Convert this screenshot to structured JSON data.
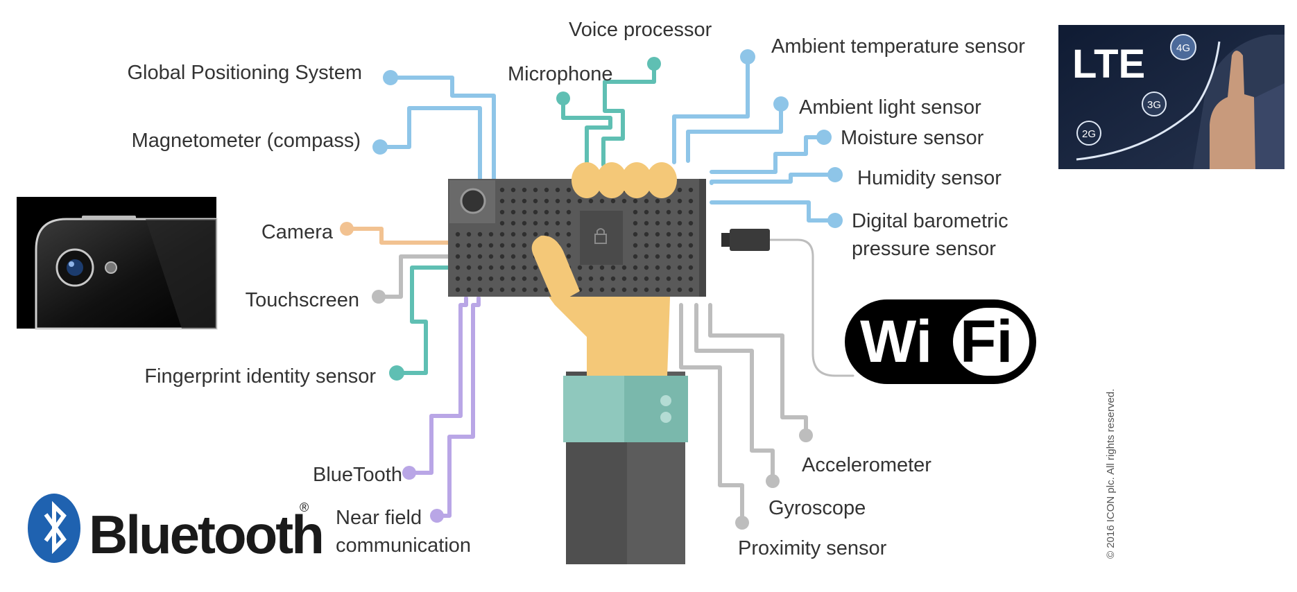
{
  "colors": {
    "blue": "#8ec5e8",
    "teal": "#5fbfb3",
    "orange": "#f2c291",
    "gray": "#bdbdbd",
    "purple": "#b9a6e6",
    "bluetooth_blue": "#1f62b0",
    "phone_body": "#595959",
    "hand_skin": "#f4c878"
  },
  "labels": {
    "voice_processor": "Voice processor",
    "microphone": "Microphone",
    "gps": "Global Positioning System",
    "magnetometer": "Magnetometer (compass)",
    "camera": "Camera",
    "touchscreen": "Touchscreen",
    "fingerprint": "Fingerprint identity sensor",
    "bluetooth_label": "BlueTooth",
    "nfc_line1": "Near field",
    "nfc_line2": "communication",
    "ambient_temp": "Ambient temperature sensor",
    "ambient_light": "Ambient light sensor",
    "moisture": "Moisture sensor",
    "humidity": "Humidity sensor",
    "barometric_line1": "Digital barometric",
    "barometric_line2": "pressure sensor",
    "accelerometer": "Accelerometer",
    "gyroscope": "Gyroscope",
    "proximity": "Proximity sensor"
  },
  "logos": {
    "lte": "LTE",
    "lte_4g": "4G",
    "lte_3g": "3G",
    "lte_2g": "2G",
    "wifi_left": "Wi",
    "wifi_right": "Fi",
    "bluetooth": "Bluetooth",
    "bluetooth_reg": "®"
  },
  "copyright": "© 2016 ICON plc. All rights reserved."
}
